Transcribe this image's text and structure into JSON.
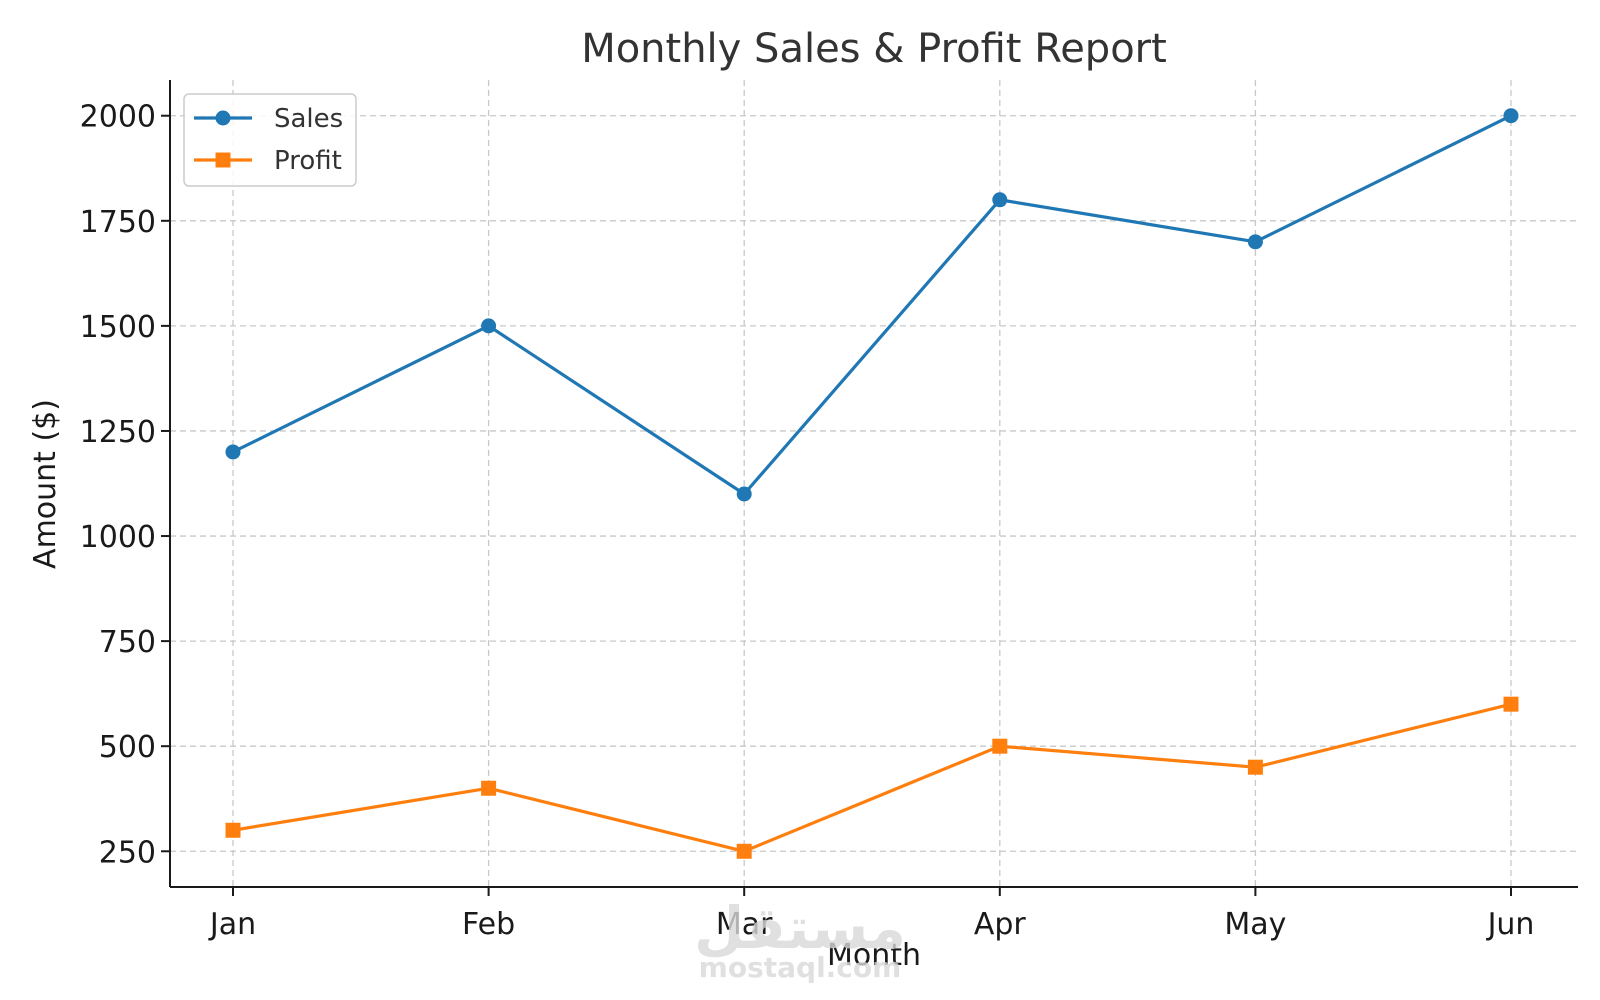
{
  "chart_data": {
    "type": "line",
    "title": "Monthly Sales & Profit Report",
    "xlabel": "Month",
    "ylabel": "Amount ($)",
    "categories": [
      "Jan",
      "Feb",
      "Mar",
      "Apr",
      "May",
      "Jun"
    ],
    "yticks": [
      250,
      500,
      750,
      1000,
      1250,
      1500,
      1750,
      2000
    ],
    "ylim": [
      165,
      2085
    ],
    "grid": true,
    "legend_position": "top-left",
    "series": [
      {
        "name": "Sales",
        "values": [
          1200,
          1500,
          1100,
          1800,
          1700,
          2000
        ],
        "color": "#1f77b4",
        "marker": "circle"
      },
      {
        "name": "Profit",
        "values": [
          300,
          400,
          250,
          500,
          450,
          600
        ],
        "color": "#ff7f0e",
        "marker": "square"
      }
    ]
  },
  "watermark": {
    "arabic": "مستقل",
    "latin": "mostaql.com"
  }
}
